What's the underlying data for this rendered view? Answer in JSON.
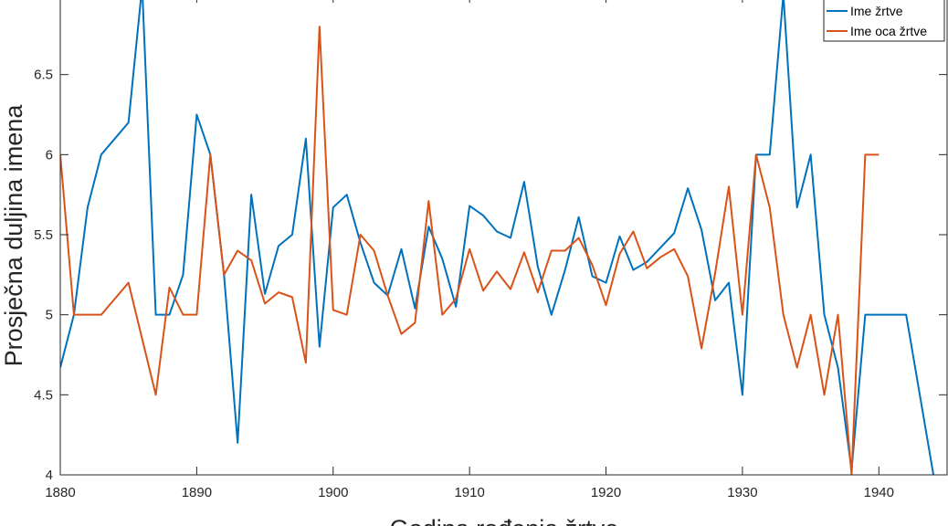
{
  "chart_data": {
    "type": "line",
    "xlabel": "Godina rođenja žrtve",
    "ylabel": "Prosječna duljina imena",
    "xlim": [
      1880,
      1945
    ],
    "ylim": [
      4,
      7
    ],
    "xticks": [
      1880,
      1890,
      1900,
      1910,
      1920,
      1930,
      1940
    ],
    "yticks": [
      4,
      4.5,
      5,
      5.5,
      6,
      6.5
    ],
    "ytick_labels": [
      "4",
      "4.5",
      "5",
      "5.5",
      "6",
      "6.5"
    ],
    "grid": false,
    "legend_position": "top-right",
    "series": [
      {
        "name": "Ime žrtve",
        "color": "#0072BD",
        "points": [
          [
            1880,
            4.67
          ],
          [
            1881,
            5.0
          ],
          [
            1882,
            5.67
          ],
          [
            1883,
            6.0
          ],
          [
            1885,
            6.2
          ],
          [
            1886,
            7.05
          ],
          [
            1887,
            5.0
          ],
          [
            1888,
            5.0
          ],
          [
            1889,
            5.25
          ],
          [
            1890,
            6.25
          ],
          [
            1891,
            6.0
          ],
          [
            1892,
            5.25
          ],
          [
            1893,
            4.2
          ],
          [
            1894,
            5.75
          ],
          [
            1895,
            5.13
          ],
          [
            1896,
            5.43
          ],
          [
            1897,
            5.5
          ],
          [
            1898,
            6.1
          ],
          [
            1899,
            4.8
          ],
          [
            1900,
            5.67
          ],
          [
            1901,
            5.75
          ],
          [
            1902,
            5.45
          ],
          [
            1903,
            5.2
          ],
          [
            1904,
            5.12
          ],
          [
            1905,
            5.41
          ],
          [
            1906,
            5.04
          ],
          [
            1907,
            5.55
          ],
          [
            1908,
            5.35
          ],
          [
            1909,
            5.05
          ],
          [
            1910,
            5.68
          ],
          [
            1911,
            5.62
          ],
          [
            1912,
            5.52
          ],
          [
            1913,
            5.48
          ],
          [
            1914,
            5.83
          ],
          [
            1915,
            5.3
          ],
          [
            1916,
            5.0
          ],
          [
            1917,
            5.28
          ],
          [
            1918,
            5.61
          ],
          [
            1919,
            5.24
          ],
          [
            1920,
            5.2
          ],
          [
            1921,
            5.49
          ],
          [
            1922,
            5.28
          ],
          [
            1923,
            5.33
          ],
          [
            1924,
            5.42
          ],
          [
            1925,
            5.51
          ],
          [
            1926,
            5.79
          ],
          [
            1927,
            5.53
          ],
          [
            1928,
            5.09
          ],
          [
            1929,
            5.2
          ],
          [
            1930,
            4.5
          ],
          [
            1931,
            6.0
          ],
          [
            1932,
            6.0
          ],
          [
            1933,
            7.0
          ],
          [
            1934,
            5.67
          ],
          [
            1935,
            6.0
          ],
          [
            1936,
            5.0
          ],
          [
            1937,
            4.67
          ],
          [
            1938,
            4.03
          ],
          [
            1939,
            5.0
          ],
          [
            1940,
            5.0
          ],
          [
            1941,
            5.0
          ],
          [
            1942,
            5.0
          ],
          [
            1944,
            4.0
          ]
        ]
      },
      {
        "name": "Ime oca žrtve",
        "color": "#D95319",
        "points": [
          [
            1880,
            6.0
          ],
          [
            1881,
            5.0
          ],
          [
            1882,
            5.0
          ],
          [
            1883,
            5.0
          ],
          [
            1885,
            5.2
          ],
          [
            1886,
            4.85
          ],
          [
            1887,
            4.5
          ],
          [
            1888,
            5.17
          ],
          [
            1889,
            5.0
          ],
          [
            1890,
            5.0
          ],
          [
            1891,
            6.0
          ],
          [
            1892,
            5.25
          ],
          [
            1893,
            5.4
          ],
          [
            1894,
            5.34
          ],
          [
            1895,
            5.07
          ],
          [
            1896,
            5.14
          ],
          [
            1897,
            5.11
          ],
          [
            1898,
            4.7
          ],
          [
            1899,
            6.8
          ],
          [
            1900,
            5.03
          ],
          [
            1901,
            5.0
          ],
          [
            1902,
            5.5
          ],
          [
            1903,
            5.4
          ],
          [
            1904,
            5.12
          ],
          [
            1905,
            4.88
          ],
          [
            1906,
            4.95
          ],
          [
            1907,
            5.71
          ],
          [
            1908,
            5.0
          ],
          [
            1909,
            5.1
          ],
          [
            1910,
            5.41
          ],
          [
            1911,
            5.15
          ],
          [
            1912,
            5.27
          ],
          [
            1913,
            5.16
          ],
          [
            1914,
            5.39
          ],
          [
            1915,
            5.14
          ],
          [
            1916,
            5.4
          ],
          [
            1917,
            5.4
          ],
          [
            1918,
            5.48
          ],
          [
            1919,
            5.31
          ],
          [
            1920,
            5.06
          ],
          [
            1921,
            5.38
          ],
          [
            1922,
            5.52
          ],
          [
            1923,
            5.29
          ],
          [
            1924,
            5.36
          ],
          [
            1925,
            5.41
          ],
          [
            1926,
            5.24
          ],
          [
            1927,
            4.79
          ],
          [
            1928,
            5.26
          ],
          [
            1929,
            5.8
          ],
          [
            1930,
            5.0
          ],
          [
            1931,
            6.0
          ],
          [
            1932,
            5.67
          ],
          [
            1933,
            5.0
          ],
          [
            1934,
            4.67
          ],
          [
            1935,
            5.0
          ],
          [
            1936,
            4.5
          ],
          [
            1937,
            5.0
          ],
          [
            1938,
            4.0
          ],
          [
            1939,
            6.0
          ],
          [
            1940,
            6.0
          ]
        ]
      }
    ]
  }
}
